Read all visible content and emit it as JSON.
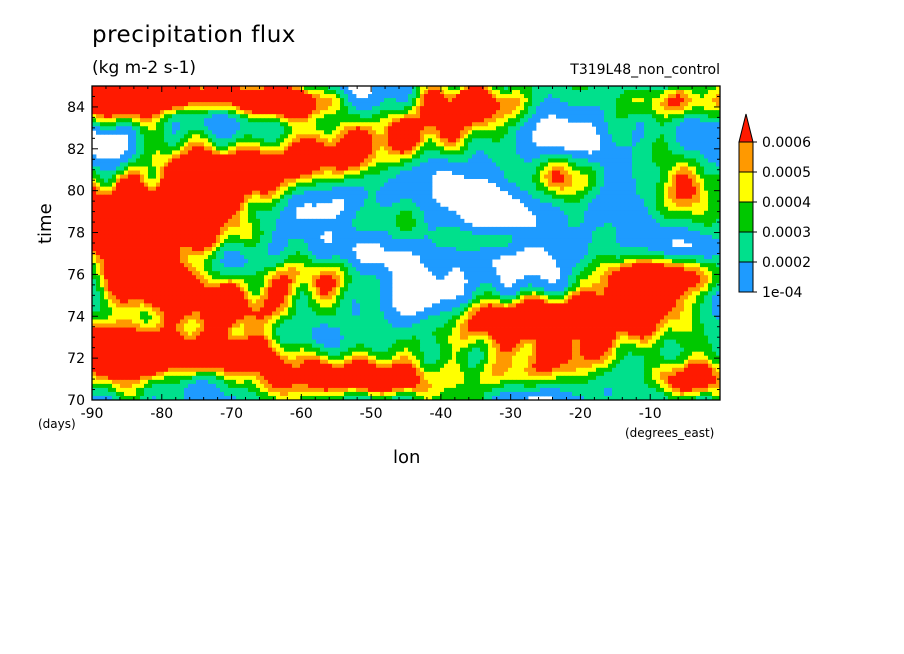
{
  "chart_data": {
    "type": "heatmap",
    "title": "precipitation flux",
    "subtitle": "(kg m-2 s-1)",
    "run_label": "T319L48_non_control",
    "xlabel": "lon",
    "xunit": "(degrees_east)",
    "ylabel": "time",
    "yunit": "(days)",
    "xlim": [
      -90,
      0
    ],
    "ylim": [
      70,
      85
    ],
    "xticks": [
      -90,
      -80,
      -70,
      -60,
      -50,
      -40,
      -30,
      -20,
      -10
    ],
    "xtick_labels": [
      "-90",
      "-80",
      "-70",
      "-60",
      "-50",
      "-40",
      "-30",
      "-20",
      "-10"
    ],
    "yticks": [
      70,
      72,
      74,
      76,
      78,
      80,
      82,
      84
    ],
    "ytick_labels": [
      "70",
      "72",
      "74",
      "76",
      "78",
      "80",
      "82",
      "84"
    ],
    "levels": [
      0.0001,
      0.0002,
      0.0003,
      0.0004,
      0.0005,
      0.0006
    ],
    "level_labels": [
      "1e-04",
      "0.0002",
      "0.0003",
      "0.0004",
      "0.0005",
      "0.0006"
    ],
    "colors": [
      "#ffffff",
      "#1e9bff",
      "#00e08c",
      "#00c800",
      "#ffff00",
      "#ff9900",
      "#ff1a00"
    ],
    "colorbar_extend": "max",
    "centers": [
      {
        "lon": -86,
        "t": 84.4,
        "amp": 0.0009,
        "slon": 5,
        "st": 0.7
      },
      {
        "lon": -76,
        "t": 84.6,
        "amp": 0.0008,
        "slon": 6,
        "st": 0.5
      },
      {
        "lon": -62,
        "t": 84.2,
        "amp": 0.0007,
        "slon": 5,
        "st": 0.5
      },
      {
        "lon": -45,
        "t": 82.8,
        "amp": 0.0008,
        "slon": 6,
        "st": 0.8
      },
      {
        "lon": -35,
        "t": 84.2,
        "amp": 0.0007,
        "slon": 5,
        "st": 0.7
      },
      {
        "lon": -57,
        "t": 81.6,
        "amp": 0.0008,
        "slon": 7,
        "st": 0.7
      },
      {
        "lon": -70,
        "t": 80.6,
        "amp": 0.0009,
        "slon": 8,
        "st": 0.9
      },
      {
        "lon": -84,
        "t": 79.0,
        "amp": 0.001,
        "slon": 7,
        "st": 1.1
      },
      {
        "lon": -77,
        "t": 78.1,
        "amp": 0.0008,
        "slon": 6,
        "st": 0.8
      },
      {
        "lon": -22,
        "t": 80.6,
        "amp": 0.0008,
        "slon": 3.5,
        "st": 0.7
      },
      {
        "lon": -7,
        "t": 84.3,
        "amp": 0.0005,
        "slon": 5,
        "st": 0.6
      },
      {
        "lon": -5,
        "t": 79.6,
        "amp": 0.0004,
        "slon": 4,
        "st": 1.0
      },
      {
        "lon": -33,
        "t": 77.7,
        "amp": 0.0004,
        "slon": 5,
        "st": 0.5
      },
      {
        "lon": -48,
        "t": 78.4,
        "amp": 0.0003,
        "slon": 6,
        "st": 0.6
      },
      {
        "lon": -82,
        "t": 75.8,
        "amp": 0.0008,
        "slon": 5,
        "st": 1.0
      },
      {
        "lon": -70,
        "t": 74.6,
        "amp": 0.0008,
        "slon": 6,
        "st": 0.8
      },
      {
        "lon": -60,
        "t": 75.8,
        "amp": 0.0005,
        "slon": 6,
        "st": 0.6
      },
      {
        "lon": -84,
        "t": 72.3,
        "amp": 0.001,
        "slon": 6,
        "st": 1.0
      },
      {
        "lon": -70,
        "t": 72.2,
        "amp": 0.0007,
        "slon": 6,
        "st": 0.6
      },
      {
        "lon": -55,
        "t": 71.2,
        "amp": 0.0007,
        "slon": 6,
        "st": 0.7
      },
      {
        "lon": -48,
        "t": 70.9,
        "amp": 0.0006,
        "slon": 4,
        "st": 0.5
      },
      {
        "lon": -36,
        "t": 73.2,
        "amp": 0.0004,
        "slon": 6,
        "st": 0.8
      },
      {
        "lon": -24,
        "t": 74.0,
        "amp": 0.001,
        "slon": 7,
        "st": 0.6
      },
      {
        "lon": -15,
        "t": 73.8,
        "amp": 0.0007,
        "slon": 5,
        "st": 0.7
      },
      {
        "lon": -8,
        "t": 75.9,
        "amp": 0.0009,
        "slon": 6,
        "st": 0.6
      },
      {
        "lon": -12,
        "t": 74.9,
        "amp": 0.0006,
        "slon": 5,
        "st": 0.6
      },
      {
        "lon": -5,
        "t": 71.0,
        "amp": 0.0006,
        "slon": 4,
        "st": 0.6
      },
      {
        "lon": -30,
        "t": 71.3,
        "amp": 0.0003,
        "slon": 6,
        "st": 0.6
      },
      {
        "lon": -20,
        "t": 72.4,
        "amp": 0.0004,
        "slon": 8,
        "st": 0.8
      }
    ]
  }
}
